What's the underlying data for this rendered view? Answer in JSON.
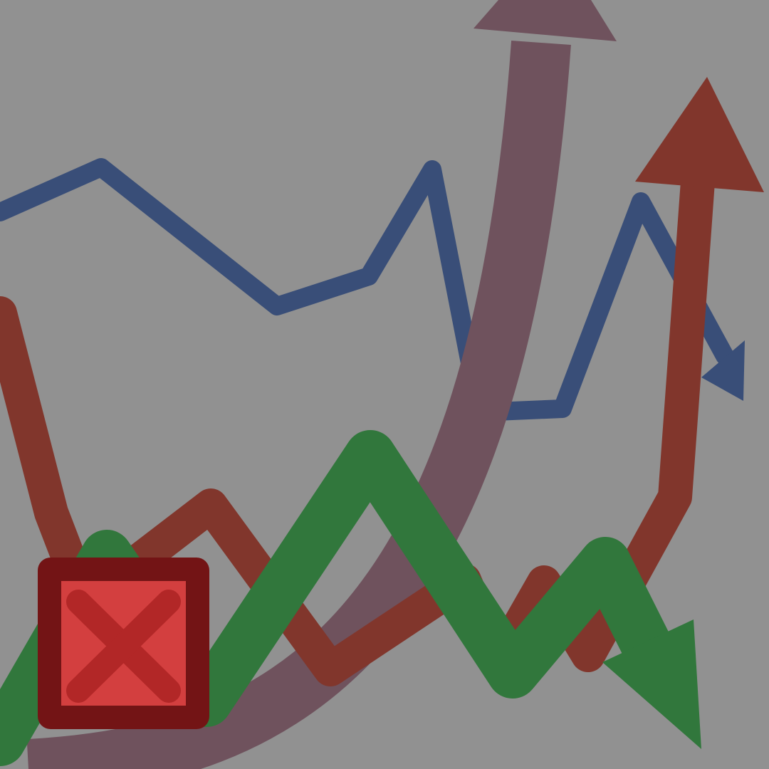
{
  "image": {
    "kind": "icon",
    "background_color": "#919191",
    "trend_lines": [
      {
        "name": "blue-zigzag-line",
        "color": "#394e78",
        "arrowhead": "down-right"
      },
      {
        "name": "mauve-curved-line",
        "color": "#6f525d",
        "arrowhead": "up"
      },
      {
        "name": "red-zigzag-line",
        "color": "#81362c",
        "arrowhead": "up"
      },
      {
        "name": "green-zigzag-line",
        "color": "#31773c",
        "arrowhead": "down-right"
      }
    ],
    "close_badge": {
      "icon": "close-icon",
      "fill": "#d33f3f",
      "border": "#731415",
      "mark": "#b22727"
    }
  }
}
